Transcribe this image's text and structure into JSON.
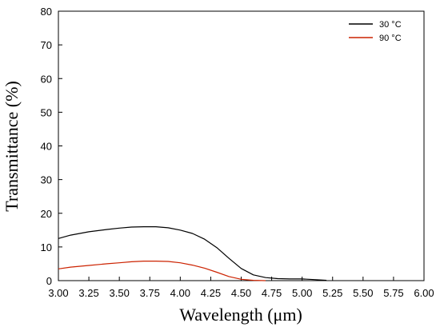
{
  "chart_data": {
    "type": "line",
    "title": "",
    "xlabel": "Wavelength (μm)",
    "ylabel": "Transmittance (%)",
    "xlim": [
      3.0,
      6.0
    ],
    "ylim": [
      0,
      80
    ],
    "x_ticks": [
      3.0,
      3.25,
      3.5,
      3.75,
      4.0,
      4.25,
      4.5,
      4.75,
      5.0,
      5.25,
      5.5,
      5.75,
      6.0
    ],
    "x_tick_labels": [
      "3.00",
      "3.25",
      "3.50",
      "3.75",
      "4.00",
      "4.25",
      "4.50",
      "4.75",
      "5.00",
      "5.25",
      "5.50",
      "5.75",
      "6.00"
    ],
    "y_ticks": [
      0,
      10,
      20,
      30,
      40,
      50,
      60,
      70,
      80
    ],
    "y_tick_labels": [
      "0",
      "10",
      "20",
      "30",
      "40",
      "50",
      "60",
      "70",
      "80"
    ],
    "grid": false,
    "legend_position": "top-right",
    "series": [
      {
        "name": "30 °C",
        "color": "#000000",
        "x": [
          3.0,
          3.1,
          3.25,
          3.4,
          3.5,
          3.6,
          3.7,
          3.8,
          3.9,
          4.0,
          4.1,
          4.2,
          4.3,
          4.4,
          4.5,
          4.6,
          4.7,
          4.8,
          4.9,
          5.0,
          5.1,
          5.2
        ],
        "y": [
          12.5,
          13.5,
          14.5,
          15.2,
          15.6,
          15.9,
          16.0,
          16.0,
          15.7,
          15.0,
          14.0,
          12.3,
          9.8,
          6.6,
          3.6,
          1.7,
          0.9,
          0.6,
          0.5,
          0.5,
          0.3,
          0.1
        ]
      },
      {
        "name": "90 °C",
        "color": "#cc2200",
        "x": [
          3.0,
          3.1,
          3.25,
          3.4,
          3.5,
          3.6,
          3.7,
          3.8,
          3.9,
          4.0,
          4.1,
          4.2,
          4.3,
          4.4,
          4.5,
          4.6,
          4.7
        ],
        "y": [
          3.5,
          4.0,
          4.5,
          5.0,
          5.3,
          5.6,
          5.8,
          5.8,
          5.7,
          5.3,
          4.6,
          3.7,
          2.5,
          1.2,
          0.4,
          0.1,
          0.0
        ]
      }
    ]
  }
}
